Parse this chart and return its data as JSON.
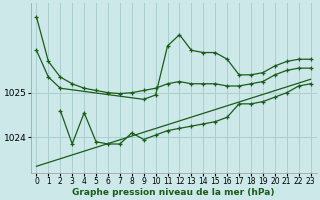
{
  "bg_color": "#cce8e8",
  "grid_color": "#aacfcf",
  "line_color": "#1a5c1a",
  "xlabel": "Graphe pression niveau de la mer (hPa)",
  "xlabel_fontsize": 6.5,
  "ylabel_fontsize": 6.5,
  "tick_fontsize": 5.5,
  "xlim": [
    -0.5,
    23.5
  ],
  "ylim": [
    1023.2,
    1027.0
  ],
  "yticks": [
    1024,
    1025
  ],
  "xticks": [
    0,
    1,
    2,
    3,
    4,
    5,
    6,
    7,
    8,
    9,
    10,
    11,
    12,
    13,
    14,
    15,
    16,
    17,
    18,
    19,
    20,
    21,
    22,
    23
  ],
  "series": {
    "line1_x": [
      0,
      1,
      2,
      3,
      4,
      5,
      6,
      7,
      8,
      9,
      10,
      11,
      12,
      13,
      14,
      15,
      16,
      17,
      18,
      19,
      20,
      21,
      22,
      23
    ],
    "line1_y": [
      1026.7,
      1025.7,
      1025.35,
      1025.2,
      1025.1,
      1025.05,
      1025.0,
      1024.98,
      1025.0,
      1025.05,
      1025.1,
      1025.2,
      1025.25,
      1025.2,
      1025.2,
      1025.2,
      1025.15,
      1025.15,
      1025.2,
      1025.25,
      1025.4,
      1025.5,
      1025.55,
      1025.55
    ],
    "line2_x": [
      0,
      1,
      2,
      9,
      10,
      11,
      12,
      13,
      14,
      15,
      16,
      17,
      18,
      19,
      20,
      21,
      22,
      23
    ],
    "line2_y": [
      1025.95,
      1025.35,
      1025.1,
      1024.85,
      1024.95,
      1026.05,
      1026.3,
      1025.95,
      1025.9,
      1025.9,
      1025.75,
      1025.4,
      1025.4,
      1025.45,
      1025.6,
      1025.7,
      1025.75,
      1025.75
    ],
    "line3_x": [
      2,
      3,
      4,
      5,
      6,
      7,
      8,
      9,
      10,
      11,
      12,
      13,
      14,
      15,
      16,
      17,
      18,
      19,
      20,
      21,
      22,
      23
    ],
    "line3_y": [
      1024.6,
      1023.85,
      1024.55,
      1023.9,
      1023.85,
      1023.85,
      1024.1,
      1023.95,
      1024.05,
      1024.15,
      1024.2,
      1024.25,
      1024.3,
      1024.35,
      1024.45,
      1024.75,
      1024.75,
      1024.8,
      1024.9,
      1025.0,
      1025.15,
      1025.2
    ],
    "line4_x": [
      0,
      23
    ],
    "line4_y": [
      1023.35,
      1025.3
    ]
  }
}
